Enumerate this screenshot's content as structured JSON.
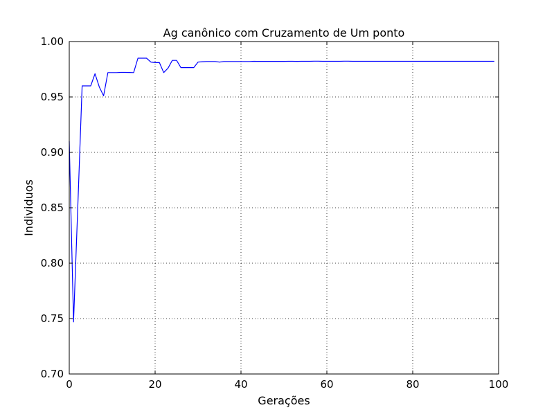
{
  "chart_data": {
    "type": "line",
    "title": "Ag canônico com Cruzamento de Um ponto",
    "xlabel": "Gerações",
    "ylabel": "Individuos",
    "xlim": [
      0,
      100
    ],
    "ylim": [
      0.7,
      1.0
    ],
    "grid": true,
    "x_ticks": [
      "0",
      "20",
      "40",
      "60",
      "80",
      "100"
    ],
    "y_ticks": [
      "0.70",
      "0.75",
      "0.80",
      "0.85",
      "0.90",
      "0.95",
      "1.00"
    ],
    "line_color": "#0000ff",
    "series": [
      {
        "x": [
          0,
          1,
          2,
          3,
          4,
          5,
          6,
          7,
          8,
          9,
          10,
          11,
          12,
          13,
          14,
          15,
          16,
          17,
          18,
          19,
          20,
          21,
          22,
          23,
          24,
          25,
          26,
          27,
          28,
          29,
          30,
          31,
          32,
          33,
          34,
          35,
          36,
          37,
          38,
          39,
          40,
          41,
          42,
          43,
          44,
          45,
          46,
          47,
          48,
          49,
          50,
          51,
          52,
          53,
          54,
          55,
          56,
          57,
          58,
          59,
          60,
          61,
          62,
          63,
          64,
          65,
          66,
          67,
          68,
          69,
          70,
          71,
          72,
          73,
          74,
          75,
          76,
          77,
          78,
          79,
          80,
          81,
          82,
          83,
          84,
          85,
          86,
          87,
          88,
          89,
          90,
          91,
          92,
          93,
          94,
          95,
          96,
          97,
          98,
          99
        ],
        "y": [
          0.91,
          0.747,
          0.852,
          0.96,
          0.96,
          0.96,
          0.971,
          0.959,
          0.951,
          0.972,
          0.972,
          0.972,
          0.9722,
          0.9722,
          0.9721,
          0.972,
          0.985,
          0.985,
          0.985,
          0.9815,
          0.981,
          0.981,
          0.972,
          0.976,
          0.983,
          0.983,
          0.9765,
          0.9765,
          0.9765,
          0.9765,
          0.9815,
          0.9818,
          0.982,
          0.982,
          0.982,
          0.9815,
          0.982,
          0.982,
          0.982,
          0.982,
          0.982,
          0.982,
          0.982,
          0.9822,
          0.9821,
          0.9821,
          0.9821,
          0.9821,
          0.9821,
          0.9821,
          0.9821,
          0.9822,
          0.9822,
          0.9821,
          0.9822,
          0.9822,
          0.9822,
          0.9823,
          0.9823,
          0.9822,
          0.9822,
          0.9822,
          0.9822,
          0.9822,
          0.9823,
          0.9823,
          0.9822,
          0.9822,
          0.9822,
          0.9822,
          0.9822,
          0.9822,
          0.9822,
          0.9822,
          0.9822,
          0.9822,
          0.9822,
          0.9822,
          0.9822,
          0.9822,
          0.9822,
          0.9822,
          0.9822,
          0.9822,
          0.9822,
          0.9822,
          0.9822,
          0.9822,
          0.9822,
          0.9822,
          0.9822,
          0.9822,
          0.9822,
          0.9822,
          0.9822,
          0.9822,
          0.9822,
          0.9822,
          0.9822,
          0.9822
        ]
      }
    ]
  }
}
